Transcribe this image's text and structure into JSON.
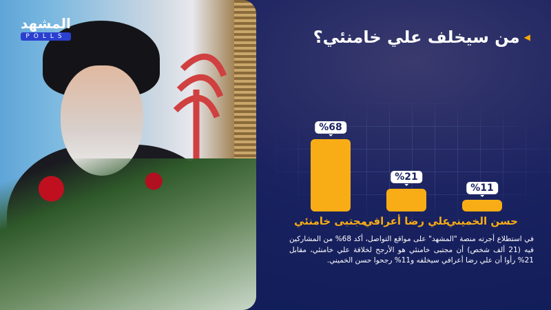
{
  "brand": {
    "logo_text": "المشهد",
    "polls_label": "POLLS"
  },
  "title": "من سيخلف علي خامنئي؟",
  "colors": {
    "accent": "#f8ad16",
    "background": "#0e1a4a",
    "label_text": "#1b2360"
  },
  "chart_data": {
    "type": "bar",
    "categories": [
      "مجتبى خامنئي",
      "علي رضا أعرافي",
      "حسن الخميني"
    ],
    "values": [
      68,
      21,
      11
    ],
    "value_labels": [
      "%68",
      "%21",
      "%11"
    ],
    "unit": "%",
    "grid": false
  },
  "description": "في استطلاع أجرته منصة \"المشهد\" على مواقع التواصل، أكد 68% من المشاركين فيه (21 ألف شخص) أن مجتبى خامنئي هو الأرجح لخلافة علي خامنئي، مقابل 21% رأوا أن علي رضا أعرافي سيخلفه و11% رجحوا حسن الخميني."
}
